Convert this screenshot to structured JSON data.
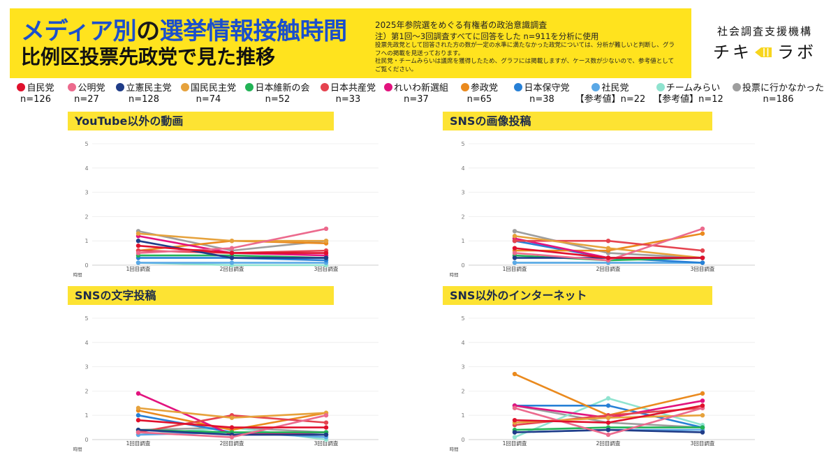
{
  "header": {
    "title_a": "メディア別",
    "title_b": "の",
    "title_c": "選挙情報接触時間",
    "subtitle": "比例区投票先政党で見た推移",
    "survey": "2025年参院選をめぐる有権者の政治意識調査",
    "note_main": "注）第1回～3回調査すべてに回答をした n=911を分析に使用",
    "note_small_1": "投票先政党として回答された方の数が一定の水準に満たなかった政党については、分析が難しいと判断し、グラフへの掲載を見送っております。",
    "note_small_2": "社民党・チームみらいは議席を獲得したため、グラフには掲載しますが、ケース数が少ないので、参考値としてご覧ください。"
  },
  "brand": {
    "org": "社会調査支援機構",
    "logo_left": "チキ",
    "logo_right": "ラボ",
    "logo_color": "#f7d51d"
  },
  "legend": [
    {
      "name": "自民党",
      "n": "n=126",
      "color": "#e0102c"
    },
    {
      "name": "公明党",
      "n": "n=27",
      "color": "#ec6a8d"
    },
    {
      "name": "立憲民主党",
      "n": "n=128",
      "color": "#1f3c88"
    },
    {
      "name": "国民民主党",
      "n": "n=74",
      "color": "#e6a23c"
    },
    {
      "name": "日本維新の会",
      "n": "n=52",
      "color": "#22b356"
    },
    {
      "name": "日本共産党",
      "n": "n=33",
      "color": "#e5434f"
    },
    {
      "name": "れいわ新選組",
      "n": "n=37",
      "color": "#e2137e"
    },
    {
      "name": "参政党",
      "n": "n=65",
      "color": "#ea8a1e"
    },
    {
      "name": "日本保守党",
      "n": "n=38",
      "color": "#2780d6"
    },
    {
      "name": "社民党",
      "note": "【参考値】",
      "n": "n=22",
      "color": "#5aa8e6"
    },
    {
      "name": "チームみらい",
      "note": "【参考値】",
      "n": "n=12",
      "color": "#8fe3cf"
    },
    {
      "name": "投票に行かなかった",
      "n": "n=186",
      "color": "#9e9e9e"
    }
  ],
  "chart_data": [
    {
      "type": "line",
      "title": "YouTube以外の動画",
      "categories": [
        "1回目調査",
        "2回目調査",
        "3回目調査"
      ],
      "ylabel": "時間",
      "ylim": [
        0,
        5
      ],
      "yticks": [
        0,
        1,
        2,
        3,
        4,
        5
      ],
      "grid": true,
      "series": [
        {
          "name": "自民党",
          "color": "#e0102c",
          "values": [
            0.8,
            0.5,
            0.5
          ]
        },
        {
          "name": "公明党",
          "color": "#ec6a8d",
          "values": [
            0.5,
            0.7,
            1.5
          ]
        },
        {
          "name": "立憲民主党",
          "color": "#1f3c88",
          "values": [
            1.0,
            0.3,
            0.3
          ]
        },
        {
          "name": "国民民主党",
          "color": "#e6a23c",
          "values": [
            1.3,
            1.0,
            1.0
          ]
        },
        {
          "name": "日本維新の会",
          "color": "#22b356",
          "values": [
            0.4,
            0.4,
            0.3
          ]
        },
        {
          "name": "日本共産党",
          "color": "#e5434f",
          "values": [
            0.6,
            0.5,
            0.6
          ]
        },
        {
          "name": "れいわ新選組",
          "color": "#e2137e",
          "values": [
            1.2,
            0.5,
            0.4
          ]
        },
        {
          "name": "参政党",
          "color": "#ea8a1e",
          "values": [
            0.6,
            1.0,
            0.9
          ]
        },
        {
          "name": "日本保守党",
          "color": "#2780d6",
          "values": [
            0.3,
            0.3,
            0.2
          ]
        },
        {
          "name": "社民党",
          "color": "#5aa8e6",
          "values": [
            0.1,
            0.1,
            0.1
          ]
        },
        {
          "name": "チームみらい",
          "color": "#8fe3cf",
          "values": [
            0.1,
            0.0,
            0.0
          ]
        },
        {
          "name": "投票に行かなかった",
          "color": "#9e9e9e",
          "values": [
            1.4,
            0.6,
            1.0
          ]
        }
      ]
    },
    {
      "type": "line",
      "title": "SNSの画像投稿",
      "categories": [
        "1回目調査",
        "2回目調査",
        "3回目調査"
      ],
      "ylabel": "時間",
      "ylim": [
        0,
        5
      ],
      "yticks": [
        0,
        1,
        2,
        3,
        4,
        5
      ],
      "grid": true,
      "series": [
        {
          "name": "自民党",
          "color": "#e0102c",
          "values": [
            0.7,
            0.3,
            0.3
          ]
        },
        {
          "name": "公明党",
          "color": "#ec6a8d",
          "values": [
            0.5,
            0.2,
            1.5
          ]
        },
        {
          "name": "立憲民主党",
          "color": "#1f3c88",
          "values": [
            0.3,
            0.3,
            0.3
          ]
        },
        {
          "name": "国民民主党",
          "color": "#e6a23c",
          "values": [
            1.2,
            0.7,
            0.3
          ]
        },
        {
          "name": "日本維新の会",
          "color": "#22b356",
          "values": [
            0.4,
            0.2,
            0.3
          ]
        },
        {
          "name": "日本共産党",
          "color": "#e5434f",
          "values": [
            1.0,
            1.0,
            0.6
          ]
        },
        {
          "name": "れいわ新選組",
          "color": "#e2137e",
          "values": [
            1.1,
            0.3,
            0.3
          ]
        },
        {
          "name": "参政党",
          "color": "#ea8a1e",
          "values": [
            0.6,
            0.6,
            1.3
          ]
        },
        {
          "name": "日本保守党",
          "color": "#2780d6",
          "values": [
            1.0,
            0.3,
            0.1
          ]
        },
        {
          "name": "社民党",
          "color": "#5aa8e6",
          "values": [
            0.1,
            0.1,
            0.1
          ]
        },
        {
          "name": "チームみらい",
          "color": "#8fe3cf",
          "values": [
            0.1,
            0.1,
            0.1
          ]
        },
        {
          "name": "投票に行かなかった",
          "color": "#9e9e9e",
          "values": [
            1.4,
            0.5,
            0.3
          ]
        }
      ]
    },
    {
      "type": "line",
      "title": "SNSの文字投稿",
      "categories": [
        "1回目調査",
        "2回目調査",
        "3回目調査"
      ],
      "ylabel": "時間",
      "ylim": [
        0,
        5
      ],
      "yticks": [
        0,
        1,
        2,
        3,
        4,
        5
      ],
      "grid": true,
      "series": [
        {
          "name": "自民党",
          "color": "#e0102c",
          "values": [
            0.8,
            0.5,
            0.5
          ]
        },
        {
          "name": "公明党",
          "color": "#ec6a8d",
          "values": [
            0.3,
            0.1,
            1.0
          ]
        },
        {
          "name": "立憲民主党",
          "color": "#1f3c88",
          "values": [
            0.4,
            0.2,
            0.2
          ]
        },
        {
          "name": "国民民主党",
          "color": "#e6a23c",
          "values": [
            1.3,
            0.9,
            1.1
          ]
        },
        {
          "name": "日本維新の会",
          "color": "#22b356",
          "values": [
            0.4,
            0.3,
            0.3
          ]
        },
        {
          "name": "日本共産党",
          "color": "#e5434f",
          "values": [
            0.3,
            1.0,
            0.7
          ]
        },
        {
          "name": "れいわ新選組",
          "color": "#e2137e",
          "values": [
            1.9,
            0.2,
            0.3
          ]
        },
        {
          "name": "参政党",
          "color": "#ea8a1e",
          "values": [
            1.2,
            0.4,
            1.1
          ]
        },
        {
          "name": "日本保守党",
          "color": "#2780d6",
          "values": [
            1.0,
            0.3,
            0.2
          ]
        },
        {
          "name": "社民党",
          "color": "#5aa8e6",
          "values": [
            0.2,
            0.3,
            0.1
          ]
        },
        {
          "name": "チームみらい",
          "color": "#8fe3cf",
          "values": [
            0.2,
            0.5,
            0.0
          ]
        },
        {
          "name": "投票に行かなかった",
          "color": "#9e9e9e",
          "values": [
            0.4,
            0.5,
            0.3
          ]
        }
      ]
    },
    {
      "type": "line",
      "title": "SNS以外のインターネット",
      "categories": [
        "1回目調査",
        "2回目調査",
        "3回目調査"
      ],
      "ylabel": "時間",
      "ylim": [
        0,
        5
      ],
      "yticks": [
        0,
        1,
        2,
        3,
        4,
        5
      ],
      "grid": true,
      "series": [
        {
          "name": "自民党",
          "color": "#e0102c",
          "values": [
            0.8,
            0.7,
            1.4
          ]
        },
        {
          "name": "公明党",
          "color": "#ec6a8d",
          "values": [
            1.3,
            0.2,
            1.3
          ]
        },
        {
          "name": "立憲民主党",
          "color": "#1f3c88",
          "values": [
            0.3,
            0.4,
            0.3
          ]
        },
        {
          "name": "国民民主党",
          "color": "#e6a23c",
          "values": [
            0.7,
            0.9,
            1.0
          ]
        },
        {
          "name": "日本維新の会",
          "color": "#22b356",
          "values": [
            0.4,
            0.5,
            0.5
          ]
        },
        {
          "name": "日本共産党",
          "color": "#e5434f",
          "values": [
            0.6,
            1.0,
            1.3
          ]
        },
        {
          "name": "れいわ新選組",
          "color": "#e2137e",
          "values": [
            1.4,
            0.9,
            1.6
          ]
        },
        {
          "name": "参政党",
          "color": "#ea8a1e",
          "values": [
            2.7,
            1.0,
            1.9
          ]
        },
        {
          "name": "日本保守党",
          "color": "#2780d6",
          "values": [
            1.4,
            1.4,
            0.5
          ]
        },
        {
          "name": "社民党",
          "color": "#5aa8e6",
          "values": [
            0.3,
            0.4,
            0.4
          ]
        },
        {
          "name": "チームみらい",
          "color": "#8fe3cf",
          "values": [
            0.1,
            1.7,
            0.6
          ]
        },
        {
          "name": "投票に行かなかった",
          "color": "#9e9e9e",
          "values": [
            1.4,
            0.7,
            0.5
          ]
        }
      ]
    }
  ]
}
